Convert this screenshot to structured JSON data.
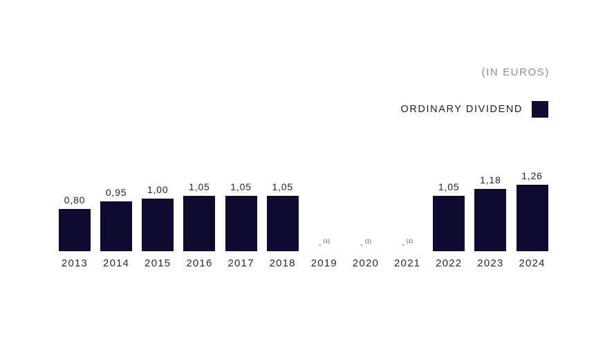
{
  "chart": {
    "units_label": "(IN EUROS)",
    "legend": {
      "label": "ORDINARY DIVIDEND",
      "swatch_color": "#0e0a30"
    }
  },
  "chart_data": {
    "type": "bar",
    "title": "",
    "units": "(IN EUROS)",
    "legend_entries": [
      "ORDINARY DIVIDEND"
    ],
    "legend_position": "top-right",
    "grid": false,
    "axes_visible": false,
    "bar_color": "#0e0a30",
    "ylim": [
      0,
      1.4
    ],
    "categories": [
      "2013",
      "2014",
      "2015",
      "2016",
      "2017",
      "2018",
      "2019",
      "2020",
      "2021",
      "2022",
      "2023",
      "2024"
    ],
    "values": [
      0.8,
      0.95,
      1.0,
      1.05,
      1.05,
      1.05,
      null,
      null,
      null,
      1.05,
      1.18,
      1.26
    ],
    "points": [
      {
        "year": "2013",
        "label": "0,80",
        "value": 0.8
      },
      {
        "year": "2014",
        "label": "0,95",
        "value": 0.95
      },
      {
        "year": "2015",
        "label": "1,00",
        "value": 1.0
      },
      {
        "year": "2016",
        "label": "1,05",
        "value": 1.05
      },
      {
        "year": "2017",
        "label": "1,05",
        "value": 1.05
      },
      {
        "year": "2018",
        "label": "1,05",
        "value": 1.05
      },
      {
        "year": "2019",
        "label": "-",
        "footnote": "(1)",
        "value": null
      },
      {
        "year": "2020",
        "label": "-",
        "footnote": "(1)",
        "value": null
      },
      {
        "year": "2021",
        "label": "-",
        "footnote": "(1)",
        "value": null
      },
      {
        "year": "2022",
        "label": "1,05",
        "value": 1.05
      },
      {
        "year": "2023",
        "label": "1,18",
        "value": 1.18
      },
      {
        "year": "2024",
        "label": "1,26",
        "value": 1.26
      }
    ]
  }
}
